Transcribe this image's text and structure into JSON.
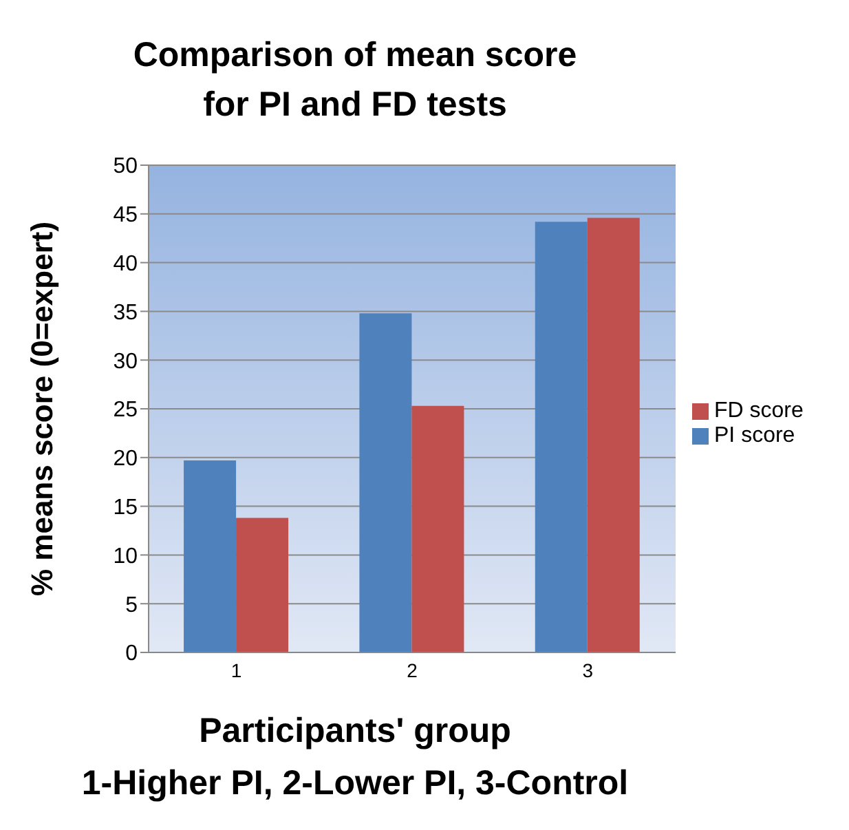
{
  "chart_data": {
    "type": "bar",
    "title": "Comparison of mean score for PI and FD tests",
    "xlabel": "Participants' group\n1-Higher PI, 2-Lower PI, 3-Control",
    "ylabel": "% means score (0=expert)",
    "categories": [
      "1",
      "2",
      "3"
    ],
    "series": [
      {
        "name": "PI score",
        "color": "#4f81bd",
        "values": [
          19.7,
          34.8,
          44.2
        ]
      },
      {
        "name": "FD score",
        "color": "#c0504d",
        "values": [
          13.8,
          25.3,
          44.6
        ]
      }
    ],
    "ylim": [
      0,
      50
    ],
    "yticks": [
      0,
      5,
      10,
      15,
      20,
      25,
      30,
      35,
      40,
      45,
      50
    ],
    "grid": "y",
    "legend": "right"
  }
}
